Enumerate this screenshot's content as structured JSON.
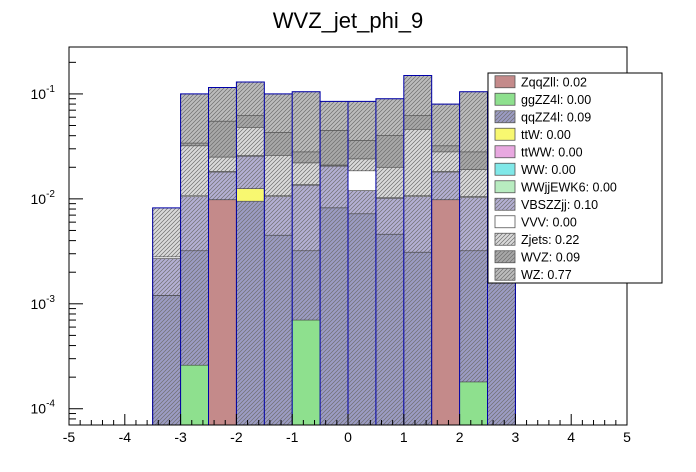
{
  "chart_data": {
    "type": "histogram",
    "title": "WVZ_jet_phi_9",
    "xlabel": "",
    "ylabel": "",
    "xlim": [
      -5,
      5
    ],
    "ylim": [
      7e-05,
      0.28
    ],
    "yscale": "log",
    "bin_edges": [
      -3.5,
      -3.0,
      -2.5,
      -2.0,
      -1.5,
      -1.0,
      -0.5,
      0.0,
      0.5,
      1.0,
      1.5,
      2.0,
      2.5,
      3.0,
      3.5
    ],
    "x_ticks": [
      -5,
      -4,
      -3,
      -2,
      -1,
      0,
      1,
      2,
      3,
      4,
      5
    ],
    "x_tick_labels": [
      "-5",
      "-4",
      "-3",
      "-2",
      "-1",
      "0",
      "1",
      "2",
      "3",
      "4",
      "5"
    ],
    "y_ticks": [
      0.0001,
      0.001,
      0.01,
      0.1
    ],
    "y_tick_bases": [
      "10",
      "10",
      "10",
      "10"
    ],
    "y_tick_exps": [
      "-4",
      "-3",
      "-2",
      "-1"
    ],
    "legend_placement": "top-right",
    "stack_order_bottom_to_top": [
      "ZqqZll",
      "ggZZ4l",
      "qqZZ4l",
      "ttW",
      "ttWW",
      "WW",
      "WWjjEWK6",
      "VBSZZjj",
      "VVV",
      "Zjets",
      "WVZ",
      "WZ"
    ],
    "cumulative_tops": {
      "ZqqZll": [
        0,
        0,
        0.0098,
        0,
        0,
        0,
        0,
        0,
        0,
        0,
        0.0098,
        0,
        0,
        0
      ],
      "ggZZ4l": [
        0,
        0.00026,
        0.0098,
        0,
        0,
        0.0007,
        0,
        0,
        0,
        0,
        0.0098,
        0.00018,
        0,
        0
      ],
      "qqZZ4l": [
        0.0012,
        0.0032,
        0.0098,
        0.0095,
        0.0045,
        0.0032,
        0.0082,
        0.0072,
        0.0046,
        0.0031,
        0.0098,
        0.0032,
        0.0032,
        0
      ],
      "ttW": [
        0.0012,
        0.0032,
        0.0098,
        0.0125,
        0.0045,
        0.0032,
        0.0082,
        0.0072,
        0.0046,
        0.0031,
        0.0098,
        0.0032,
        0.0032,
        0
      ],
      "VBSZZjj": [
        0.0027,
        0.0105,
        0.018,
        0.0255,
        0.0105,
        0.0135,
        0.0205,
        0.012,
        0.0101,
        0.0105,
        0.018,
        0.0103,
        0.0108,
        0
      ],
      "VVV": [
        0.0028,
        0.0108,
        0.0183,
        0.0258,
        0.0107,
        0.0137,
        0.0208,
        0.0185,
        0.0103,
        0.0107,
        0.0183,
        0.0105,
        0.011,
        0
      ],
      "Zjets": [
        0.0082,
        0.032,
        0.025,
        0.048,
        0.026,
        0.022,
        0.021,
        0.024,
        0.02,
        0.046,
        0.028,
        0.019,
        0.034,
        0
      ],
      "WVZ": [
        0.0082,
        0.034,
        0.055,
        0.062,
        0.043,
        0.028,
        0.045,
        0.036,
        0.04,
        0.062,
        0.032,
        0.028,
        0.038,
        0
      ],
      "WZ": [
        0.0082,
        0.1,
        0.115,
        0.13,
        0.1,
        0.105,
        0.085,
        0.085,
        0.09,
        0.15,
        0.08,
        0.105,
        0.1,
        0
      ]
    },
    "series": [
      {
        "name": "ZqqZll",
        "label": "ZqqZll: 0.02",
        "color": "#c48a8a"
      },
      {
        "name": "ggZZ4l",
        "label": "ggZZ4l: 0.00",
        "color": "#8ee08e"
      },
      {
        "name": "qqZZ4l",
        "label": "qqZZ4l: 0.09",
        "color": "#9c9cc4"
      },
      {
        "name": "ttW",
        "label": "ttW: 0.00",
        "color": "#f8f870"
      },
      {
        "name": "ttWW",
        "label": "ttWW: 0.00",
        "color": "#e8a8e0"
      },
      {
        "name": "WW",
        "label": "WW: 0.00",
        "color": "#80e8e8"
      },
      {
        "name": "WWjjEWK6",
        "label": "WWjjEWK6: 0.00",
        "color": "#b8ecc0"
      },
      {
        "name": "VBSZZjj",
        "label": "VBSZZjj: 0.10",
        "color": "#b4b0d4"
      },
      {
        "name": "VVV",
        "label": "VVV: 0.00",
        "color": "#ffffff"
      },
      {
        "name": "Zjets",
        "label": "Zjets: 0.22",
        "color": "#dadada"
      },
      {
        "name": "WVZ",
        "label": "WVZ: 0.09",
        "color": "#a8a8a8"
      },
      {
        "name": "WZ",
        "label": "WZ: 0.77",
        "color": "#bcbcbc"
      }
    ],
    "colors": {
      "outline": "#0000aa",
      "axis": "#000000"
    }
  }
}
